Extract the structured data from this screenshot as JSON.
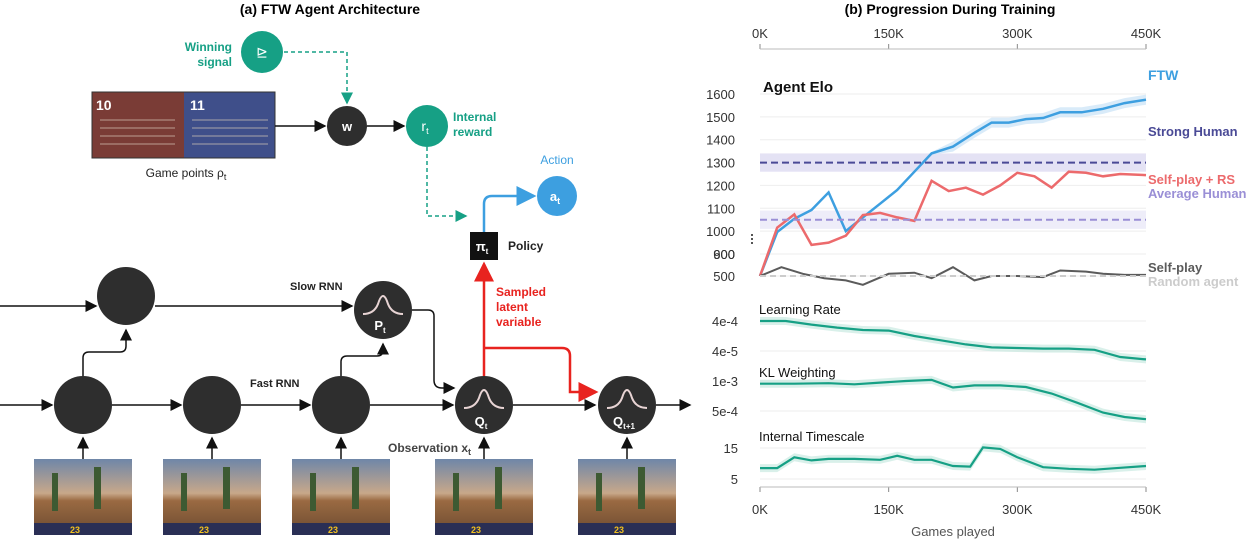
{
  "left_panel": {
    "title": "(a) FTW Agent Architecture",
    "winning_signal": [
      "Winning",
      "signal"
    ],
    "winning_glyph": "⊵",
    "game_points": "Game points ρ",
    "game_points_sub": "t",
    "scoreboard": {
      "red": "10",
      "blue": "11"
    },
    "w_label": "w",
    "r_label": "r",
    "r_sub": "t",
    "internal_reward": [
      "Internal",
      "reward"
    ],
    "action": "Action",
    "a_label": "a",
    "a_sub": "t",
    "pi_label": "π",
    "pi_sub": "t",
    "policy": "Policy",
    "sampled": [
      "Sampled",
      "latent",
      "variable"
    ],
    "slow_rnn": "Slow RNN",
    "fast_rnn": "Fast RNN",
    "p_label": "P",
    "p_sub": "t",
    "q_label": "Q",
    "q_sub": "t",
    "q1_label": "Q",
    "q1_sub": "t+1",
    "observation": "Observation x",
    "observation_sub": "t",
    "frame_hud_value": "23"
  },
  "right_panel": {
    "title": "(b) Progression During Training",
    "xlabel": "Games played",
    "colors": {
      "ftw": "#3d9fe0",
      "self_play_rs": "#ec6a6c",
      "self_play": "#5b5b5b",
      "random": "#cccccc",
      "strong": "#4a4a96",
      "average": "#9a8fd6",
      "teal": "#16a085"
    },
    "chart_data": [
      {
        "type": "line",
        "title": "Agent Elo",
        "x_ticks": [
          "0K",
          "150K",
          "300K",
          "450K"
        ],
        "y_ticks": [
          "500",
          "600",
          "900",
          "1000",
          "1100",
          "1200",
          "1300",
          "1400",
          "1500",
          "1600"
        ],
        "xlim": [
          0,
          450000
        ],
        "series": [
          {
            "name": "FTW",
            "x": [
              0,
              20000,
              40000,
              60000,
              80000,
              100000,
              120000,
              140000,
              160000,
              180000,
              200000,
              225000,
              250000,
              270000,
              290000,
              310000,
              330000,
              350000,
              375000,
              400000,
              425000,
              450000
            ],
            "y": [
              500,
              700,
              760,
              800,
              880,
              1000,
              1060,
              1120,
              1180,
              1260,
              1340,
              1370,
              1430,
              1475,
              1475,
              1490,
              1495,
              1520,
              1520,
              1535,
              1560,
              1575
            ]
          },
          {
            "name": "Self-play + RS",
            "x": [
              0,
              20000,
              40000,
              60000,
              80000,
              100000,
              120000,
              140000,
              160000,
              180000,
              200000,
              220000,
              240000,
              260000,
              280000,
              300000,
              320000,
              340000,
              360000,
              380000,
              400000,
              420000,
              450000
            ],
            "y": [
              500,
              720,
              780,
              940,
              950,
              980,
              1070,
              1080,
              1060,
              1045,
              1220,
              1175,
              1190,
              1160,
              1200,
              1255,
              1240,
              1190,
              1260,
              1255,
              1240,
              1250,
              1245
            ]
          },
          {
            "name": "Self-play",
            "x": [
              0,
              25000,
              50000,
              75000,
              100000,
              120000,
              150000,
              180000,
              200000,
              225000,
              250000,
              270000,
              300000,
              330000,
              350000,
              380000,
              400000,
              425000,
              450000
            ],
            "y": [
              500,
              540,
              510,
              490,
              480,
              460,
              510,
              515,
              490,
              540,
              480,
              500,
              500,
              495,
              525,
              520,
              510,
              505,
              505
            ]
          },
          {
            "name": "Random agent",
            "x": [
              0,
              450000
            ],
            "y": [
              500,
              500
            ]
          },
          {
            "name": "Strong Human",
            "x": [
              0,
              450000
            ],
            "y": [
              1300,
              1300
            ]
          },
          {
            "name": "Average Human",
            "x": [
              0,
              450000
            ],
            "y": [
              1050,
              1050
            ]
          }
        ]
      },
      {
        "type": "line",
        "title": "Learning Rate",
        "y_ticks": [
          "4e-4",
          "4e-5"
        ],
        "series": [
          {
            "name": "",
            "x": [
              0,
              30000,
              60000,
              90000,
              120000,
              150000,
              180000,
              210000,
              240000,
              270000,
              300000,
              330000,
              360000,
              390000,
              420000,
              450000
            ],
            "y": [
              0.0,
              0.0,
              0.06,
              0.11,
              0.15,
              0.16,
              0.25,
              0.32,
              0.39,
              0.44,
              0.45,
              0.46,
              0.46,
              0.48,
              0.6,
              0.64
            ]
          }
        ]
      },
      {
        "type": "line",
        "title": "KL Weighting",
        "y_ticks": [
          "1e-3",
          "5e-4"
        ],
        "series": [
          {
            "name": "",
            "x": [
              0,
              40000,
              80000,
              110000,
              140000,
              170000,
              200000,
              225000,
              250000,
              280000,
              310000,
              340000,
              370000,
              400000,
              425000,
              450000
            ],
            "y": [
              0.95,
              0.95,
              0.96,
              0.94,
              0.97,
              1.0,
              1.02,
              0.88,
              0.92,
              0.92,
              0.89,
              0.77,
              0.6,
              0.42,
              0.34,
              0.3
            ]
          }
        ]
      },
      {
        "type": "line",
        "title": "Internal Timescale",
        "y_ticks": [
          "15",
          "5"
        ],
        "series": [
          {
            "name": "",
            "x": [
              0,
              20000,
              40000,
              60000,
              80000,
              110000,
              140000,
              160000,
              180000,
              200000,
              225000,
              245000,
              260000,
              280000,
              300000,
              330000,
              360000,
              390000,
              420000,
              450000
            ],
            "y": [
              8.5,
              8.5,
              12,
              11,
              11.5,
              11.5,
              11.2,
              12.5,
              11.2,
              11.2,
              9.2,
              9.0,
              15.2,
              14.7,
              12,
              8.8,
              8.3,
              8.0,
              8.6,
              9.2
            ]
          }
        ]
      }
    ]
  }
}
